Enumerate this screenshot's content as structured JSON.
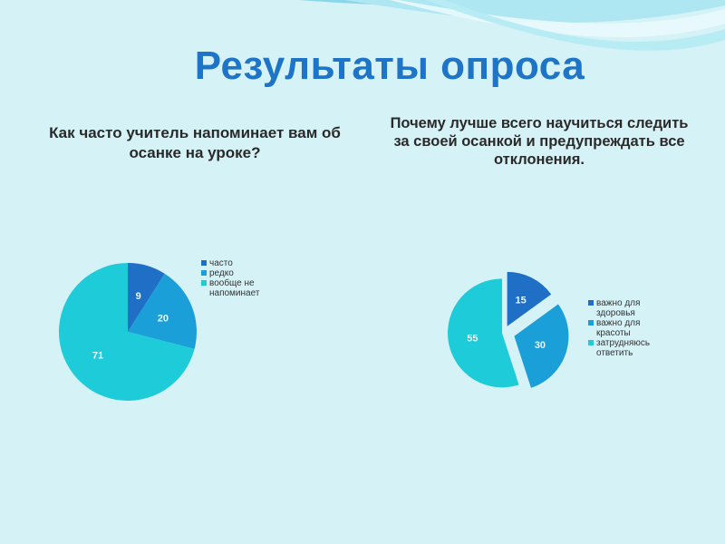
{
  "title": "Результаты опроса",
  "chart_data": [
    {
      "type": "pie",
      "title": "Как часто учитель напоминает вам об осанке на уроке?",
      "categories": [
        "часто",
        "редко",
        "вообще не напоминает"
      ],
      "values": [
        9,
        20,
        71
      ],
      "colors": [
        "#1f6fc6",
        "#1a9fd8",
        "#1ecbd8"
      ],
      "legend_position": "right"
    },
    {
      "type": "pie",
      "title": "Почему лучше всего научиться следить за своей осанкой и предупреждать все отклонения.",
      "categories": [
        "важно для здоровья",
        "важно для красоты",
        "затрудняюсь ответить"
      ],
      "values": [
        15,
        30,
        55
      ],
      "colors": [
        "#1f6fc6",
        "#1a9fd8",
        "#1ecbd8"
      ],
      "exploded": true,
      "legend_position": "right"
    }
  ],
  "legend1": {
    "items": [
      {
        "lines": [
          "часто"
        ]
      },
      {
        "lines": [
          "редко"
        ]
      },
      {
        "lines": [
          "вообще не",
          "напоминает"
        ]
      }
    ]
  },
  "legend2": {
    "items": [
      {
        "lines": [
          "важно для",
          "здоровья"
        ]
      },
      {
        "lines": [
          "важно для",
          "красоты"
        ]
      },
      {
        "lines": [
          "затрудняюсь",
          "ответить"
        ]
      }
    ]
  }
}
